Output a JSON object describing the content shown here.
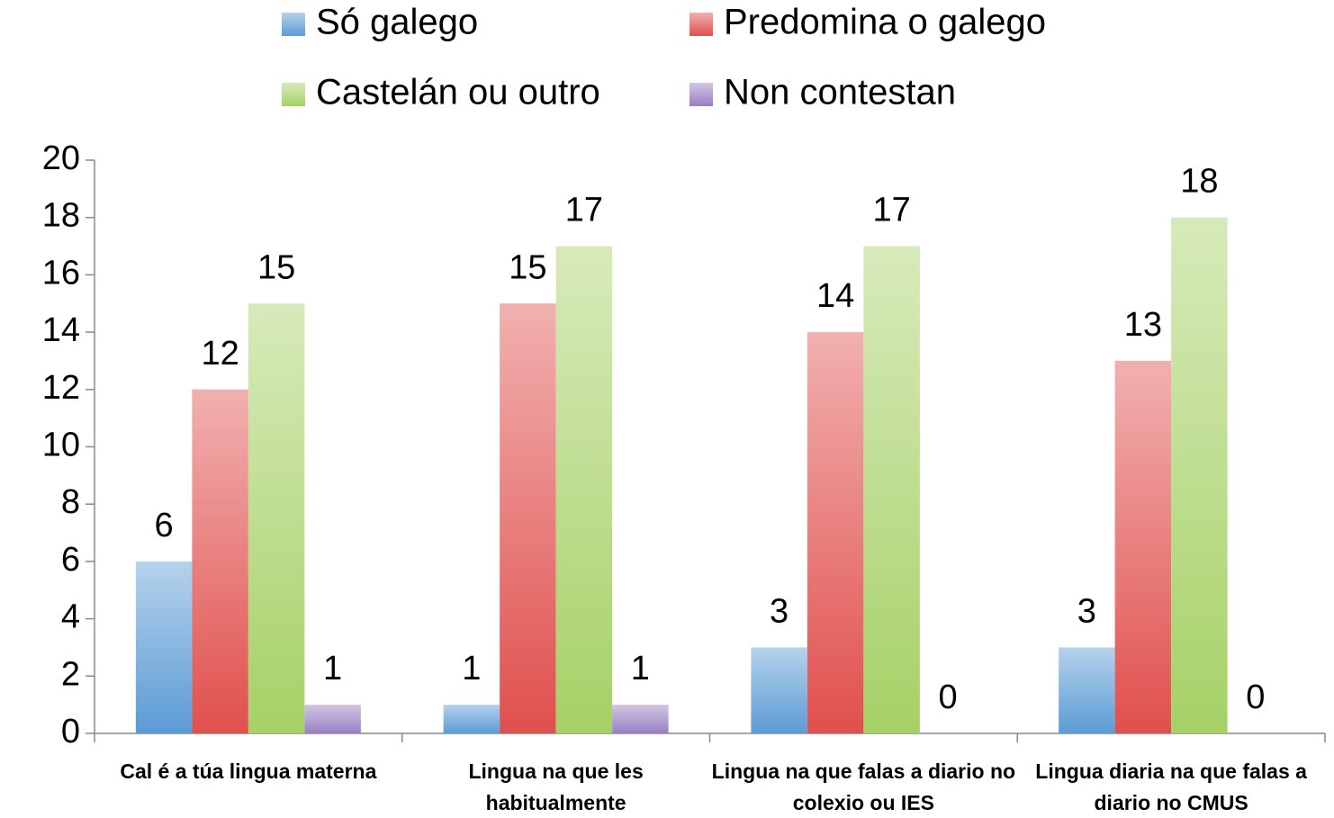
{
  "chart_data": {
    "type": "bar",
    "categories": [
      "Cal é a túa lingua materna",
      "Lingua na que les habitualmente",
      "Lingua na que falas a diario no colexio ou IES",
      "Lingua diaria na que falas a diario no CMUS"
    ],
    "series": [
      {
        "name": "Só galego",
        "color": "#5b9bd5",
        "values": [
          6,
          1,
          3,
          3
        ]
      },
      {
        "name": "Predomina o galego",
        "color": "#e0504d",
        "values": [
          12,
          15,
          14,
          13
        ]
      },
      {
        "name": "Castelán ou outro",
        "color": "#a6d166",
        "values": [
          15,
          17,
          17,
          18
        ]
      },
      {
        "name": "Non contestan",
        "color": "#9a7fc4",
        "values": [
          1,
          1,
          0,
          0
        ]
      }
    ],
    "ylim": [
      0,
      20
    ],
    "yticks": [
      0,
      2,
      4,
      6,
      8,
      10,
      12,
      14,
      16,
      18,
      20
    ],
    "grid": false
  }
}
